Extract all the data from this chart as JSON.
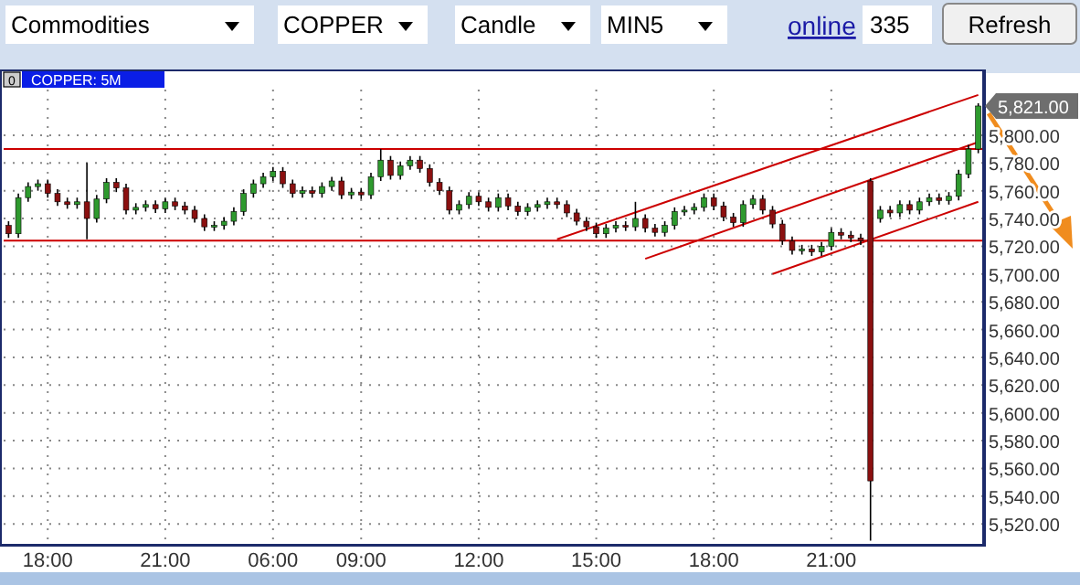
{
  "chart_data": {
    "type": "candlestick",
    "title": "COPPER: 5M",
    "annotations": [
      "Commodities",
      "COPPER",
      "Candle",
      "MIN5",
      "online",
      "335",
      "Refresh",
      "0",
      "5,821.00"
    ],
    "categories": [
      null,
      null,
      null,
      null,
      "18:00",
      null,
      null,
      null,
      null,
      null,
      null,
      null,
      null,
      null,
      null,
      null,
      "21:00",
      null,
      null,
      null,
      null,
      null,
      null,
      null,
      null,
      null,
      null,
      "06:00",
      null,
      null,
      null,
      null,
      null,
      null,
      null,
      null,
      "09:00",
      null,
      null,
      null,
      null,
      null,
      null,
      null,
      null,
      null,
      null,
      null,
      "12:00",
      null,
      null,
      null,
      null,
      null,
      null,
      null,
      null,
      null,
      null,
      null,
      "15:00",
      null,
      null,
      null,
      null,
      null,
      null,
      null,
      null,
      null,
      null,
      null,
      "18:00",
      null,
      null,
      null,
      null,
      null,
      null,
      null,
      null,
      null,
      null,
      null,
      "21:00",
      null,
      null,
      null,
      null,
      null,
      null,
      null,
      null,
      null,
      null,
      null,
      null,
      null,
      null,
      null
    ],
    "ohlc": [
      [
        5735,
        5738,
        5726,
        5729
      ],
      [
        5729,
        5758,
        5726,
        5755
      ],
      [
        5755,
        5766,
        5752,
        5763
      ],
      [
        5763,
        5768,
        5760,
        5765
      ],
      [
        5765,
        5768,
        5755,
        5758
      ],
      [
        5758,
        5761,
        5749,
        5752
      ],
      [
        5752,
        5755,
        5747,
        5750
      ],
      [
        5750,
        5755,
        5747,
        5752
      ],
      [
        5752,
        5780,
        5725,
        5740
      ],
      [
        5740,
        5757,
        5737,
        5754
      ],
      [
        5754,
        5769,
        5751,
        5766
      ],
      [
        5766,
        5769,
        5759,
        5762
      ],
      [
        5762,
        5765,
        5743,
        5746
      ],
      [
        5746,
        5751,
        5743,
        5748
      ],
      [
        5748,
        5753,
        5745,
        5750
      ],
      [
        5750,
        5753,
        5744,
        5747
      ],
      [
        5747,
        5755,
        5744,
        5752
      ],
      [
        5752,
        5755,
        5746,
        5749
      ],
      [
        5749,
        5752,
        5743,
        5746
      ],
      [
        5746,
        5749,
        5737,
        5740
      ],
      [
        5740,
        5743,
        5731,
        5734
      ],
      [
        5734,
        5738,
        5731,
        5735
      ],
      [
        5735,
        5741,
        5732,
        5738
      ],
      [
        5738,
        5748,
        5735,
        5745
      ],
      [
        5745,
        5761,
        5742,
        5758
      ],
      [
        5758,
        5768,
        5755,
        5765
      ],
      [
        5765,
        5773,
        5762,
        5770
      ],
      [
        5770,
        5777,
        5767,
        5774
      ],
      [
        5774,
        5777,
        5762,
        5765
      ],
      [
        5765,
        5768,
        5755,
        5758
      ],
      [
        5758,
        5763,
        5755,
        5760
      ],
      [
        5760,
        5763,
        5755,
        5758
      ],
      [
        5758,
        5766,
        5755,
        5763
      ],
      [
        5763,
        5770,
        5760,
        5767
      ],
      [
        5767,
        5770,
        5754,
        5757
      ],
      [
        5757,
        5762,
        5754,
        5759
      ],
      [
        5759,
        5762,
        5754,
        5757
      ],
      [
        5757,
        5773,
        5754,
        5770
      ],
      [
        5770,
        5790,
        5767,
        5782
      ],
      [
        5782,
        5785,
        5768,
        5771
      ],
      [
        5771,
        5781,
        5768,
        5778
      ],
      [
        5778,
        5785,
        5775,
        5782
      ],
      [
        5782,
        5785,
        5773,
        5776
      ],
      [
        5776,
        5779,
        5763,
        5766
      ],
      [
        5766,
        5769,
        5757,
        5760
      ],
      [
        5760,
        5763,
        5743,
        5746
      ],
      [
        5746,
        5753,
        5743,
        5750
      ],
      [
        5750,
        5759,
        5747,
        5756
      ],
      [
        5756,
        5759,
        5749,
        5752
      ],
      [
        5752,
        5755,
        5745,
        5748
      ],
      [
        5748,
        5758,
        5745,
        5755
      ],
      [
        5755,
        5758,
        5746,
        5749
      ],
      [
        5749,
        5752,
        5742,
        5745
      ],
      [
        5745,
        5751,
        5742,
        5748
      ],
      [
        5748,
        5753,
        5745,
        5750
      ],
      [
        5750,
        5755,
        5747,
        5752
      ],
      [
        5752,
        5755,
        5747,
        5750
      ],
      [
        5750,
        5753,
        5741,
        5744
      ],
      [
        5744,
        5747,
        5735,
        5738
      ],
      [
        5738,
        5741,
        5731,
        5734
      ],
      [
        5734,
        5737,
        5726,
        5729
      ],
      [
        5729,
        5736,
        5726,
        5733
      ],
      [
        5733,
        5738,
        5730,
        5735
      ],
      [
        5735,
        5738,
        5731,
        5734
      ],
      [
        5734,
        5752,
        5731,
        5740
      ],
      [
        5740,
        5743,
        5730,
        5733
      ],
      [
        5733,
        5736,
        5727,
        5730
      ],
      [
        5730,
        5738,
        5727,
        5735
      ],
      [
        5735,
        5748,
        5732,
        5745
      ],
      [
        5745,
        5749,
        5742,
        5746
      ],
      [
        5746,
        5751,
        5743,
        5748
      ],
      [
        5748,
        5758,
        5745,
        5755
      ],
      [
        5755,
        5758,
        5746,
        5749
      ],
      [
        5749,
        5752,
        5738,
        5741
      ],
      [
        5741,
        5744,
        5734,
        5737
      ],
      [
        5737,
        5753,
        5734,
        5750
      ],
      [
        5750,
        5757,
        5747,
        5754
      ],
      [
        5754,
        5757,
        5743,
        5746
      ],
      [
        5746,
        5749,
        5733,
        5736
      ],
      [
        5736,
        5739,
        5721,
        5724
      ],
      [
        5724,
        5727,
        5714,
        5717
      ],
      [
        5717,
        5721,
        5714,
        5718
      ],
      [
        5718,
        5721,
        5713,
        5716
      ],
      [
        5716,
        5723,
        5713,
        5720
      ],
      [
        5720,
        5733,
        5717,
        5730
      ],
      [
        5730,
        5733,
        5725,
        5728
      ],
      [
        5728,
        5731,
        5723,
        5726
      ],
      [
        5726,
        5729,
        5721,
        5724
      ],
      [
        5767,
        5769,
        5508,
        5551
      ],
      [
        5740,
        5749,
        5737,
        5746
      ],
      [
        5746,
        5749,
        5741,
        5744
      ],
      [
        5744,
        5753,
        5741,
        5750
      ],
      [
        5750,
        5753,
        5743,
        5746
      ],
      [
        5746,
        5755,
        5743,
        5752
      ],
      [
        5752,
        5758,
        5749,
        5755
      ],
      [
        5755,
        5758,
        5750,
        5753
      ],
      [
        5753,
        5759,
        5750,
        5756
      ],
      [
        5756,
        5775,
        5753,
        5772
      ],
      [
        5772,
        5793,
        5769,
        5790
      ],
      [
        5790,
        5823,
        5787,
        5821
      ]
    ],
    "series": [
      {
        "type": "line",
        "values": [
          null,
          null,
          null,
          null,
          null,
          null,
          null,
          null,
          null,
          null,
          null,
          null,
          null,
          null,
          null,
          null,
          null,
          null,
          null,
          null,
          null,
          null,
          null,
          null,
          null,
          null,
          null,
          null,
          null,
          null,
          null,
          null,
          null,
          null,
          null,
          null,
          null,
          null,
          null,
          null,
          null,
          null,
          null,
          null,
          null,
          null,
          null,
          null,
          null,
          null,
          null,
          null,
          null,
          null,
          null,
          null,
          5725,
          null,
          null,
          null,
          null,
          null,
          null,
          null,
          null,
          null,
          null,
          null,
          null,
          null,
          null,
          null,
          null,
          null,
          null,
          null,
          null,
          null,
          null,
          null,
          null,
          null,
          null,
          null,
          null,
          null,
          null,
          null,
          null,
          null,
          null,
          null,
          null,
          null,
          null,
          null,
          null,
          null,
          null,
          5829
        ],
        "color": "#cc0000"
      },
      {
        "type": "line",
        "values": [
          null,
          null,
          null,
          null,
          null,
          null,
          null,
          null,
          null,
          null,
          null,
          null,
          null,
          null,
          null,
          null,
          null,
          null,
          null,
          null,
          null,
          null,
          null,
          null,
          null,
          null,
          null,
          null,
          null,
          null,
          null,
          null,
          null,
          null,
          null,
          null,
          null,
          null,
          null,
          null,
          null,
          null,
          null,
          null,
          null,
          null,
          null,
          null,
          null,
          null,
          null,
          null,
          null,
          null,
          null,
          null,
          null,
          null,
          null,
          null,
          null,
          null,
          null,
          null,
          null,
          5711,
          null,
          null,
          null,
          null,
          null,
          null,
          null,
          null,
          null,
          null,
          null,
          null,
          null,
          null,
          null,
          null,
          null,
          null,
          null,
          null,
          null,
          null,
          null,
          null,
          null,
          null,
          null,
          null,
          null,
          null,
          null,
          null,
          null,
          5795
        ],
        "color": "#cc0000"
      },
      {
        "type": "line",
        "values": [
          null,
          null,
          null,
          null,
          null,
          null,
          null,
          null,
          null,
          null,
          null,
          null,
          null,
          null,
          null,
          null,
          null,
          null,
          null,
          null,
          null,
          null,
          null,
          null,
          null,
          null,
          null,
          null,
          null,
          null,
          null,
          null,
          null,
          null,
          null,
          null,
          null,
          null,
          null,
          null,
          null,
          null,
          null,
          null,
          null,
          null,
          null,
          null,
          null,
          null,
          null,
          null,
          null,
          null,
          null,
          null,
          null,
          null,
          null,
          null,
          null,
          null,
          null,
          null,
          null,
          null,
          null,
          null,
          null,
          null,
          null,
          null,
          null,
          null,
          null,
          null,
          null,
          null,
          5700,
          null,
          null,
          null,
          null,
          null,
          null,
          null,
          null,
          null,
          null,
          null,
          null,
          null,
          null,
          null,
          null,
          null,
          null,
          null,
          null,
          5752
        ],
        "color": "#cc0000"
      }
    ],
    "ref_lines": [
      {
        "axis": "y",
        "value": 5790,
        "color": "#cc0000"
      },
      {
        "axis": "y",
        "value": 5724,
        "color": "#cc0000"
      }
    ],
    "ylim": [
      5505,
      5846
    ],
    "yticks": [
      {
        "value": 5520,
        "label": "5,520.00"
      },
      {
        "value": 5540,
        "label": "5,540.00"
      },
      {
        "value": 5560,
        "label": "5,560.00"
      },
      {
        "value": 5580,
        "label": "5,580.00"
      },
      {
        "value": 5600,
        "label": "5,600.00"
      },
      {
        "value": 5620,
        "label": "5,620.00"
      },
      {
        "value": 5640,
        "label": "5,640.00"
      },
      {
        "value": 5660,
        "label": "5,660.00"
      },
      {
        "value": 5680,
        "label": "5,680.00"
      },
      {
        "value": 5700,
        "label": "5,700.00"
      },
      {
        "value": 5720,
        "label": "5,720.00"
      },
      {
        "value": 5740,
        "label": "5,740.00"
      },
      {
        "value": 5760,
        "label": "5,760.00"
      },
      {
        "value": 5780,
        "label": "5,780.00"
      },
      {
        "value": 5800,
        "label": "5,800.00"
      }
    ],
    "grid": true
  }
}
